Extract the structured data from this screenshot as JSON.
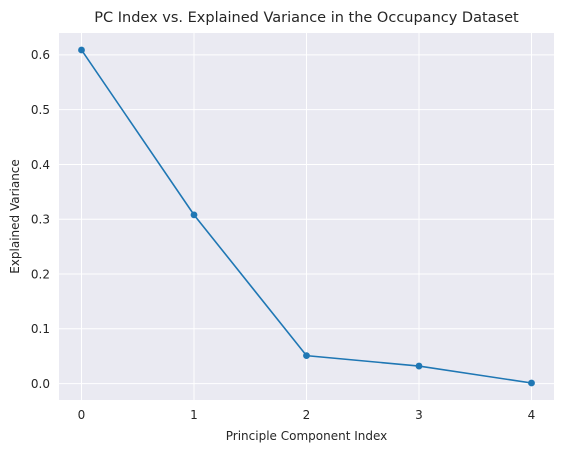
{
  "chart_data": {
    "type": "line",
    "title": "PC Index vs. Explained Variance in the Occupancy Dataset",
    "xlabel": "Principle Component Index",
    "ylabel": "Explained Variance",
    "x": [
      0,
      1,
      2,
      3,
      4
    ],
    "series": [
      {
        "values": [
          0.609,
          0.308,
          0.051,
          0.032,
          0.001
        ],
        "color": "#1f77b4",
        "marker": "circle"
      }
    ],
    "xlim": [
      -0.2,
      4.2
    ],
    "ylim": [
      -0.03,
      0.64
    ],
    "xticks": [
      "0",
      "1",
      "2",
      "3",
      "4"
    ],
    "yticks": [
      "0.0",
      "0.1",
      "0.2",
      "0.3",
      "0.4",
      "0.5",
      "0.6"
    ],
    "grid": true,
    "background_color": "#eaeaf2"
  }
}
